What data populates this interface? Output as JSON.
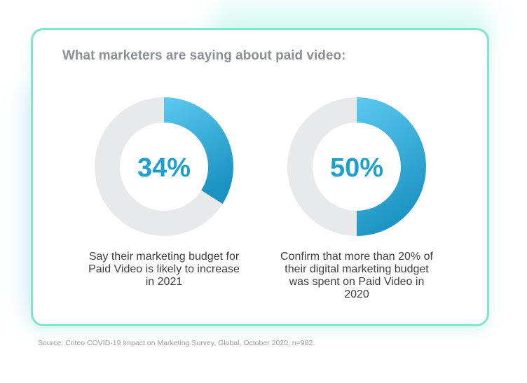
{
  "card": {
    "title": "What marketers are saying about paid video:"
  },
  "colors": {
    "card_border": "#7fe6cc",
    "arc_start": "#5cc9f0",
    "arc_end": "#1c93c3",
    "track": "#e8e9eb",
    "percent_text": "#1fa0cc",
    "title_text": "#8c8f94"
  },
  "chart_data": [
    {
      "type": "pie",
      "variant": "donut",
      "value": 34,
      "label": "34%",
      "caption": "Say their marketing budget for Paid Video is likely to increase in 2021"
    },
    {
      "type": "pie",
      "variant": "donut",
      "value": 50,
      "label": "50%",
      "caption": "Confirm that more than 20% of their digital marketing budget was spent on Paid Video in 2020"
    }
  ],
  "footer": {
    "source": "Source: Criteo COVID-19 Impact on Marketing Survey, Global, October 2020, n=982."
  }
}
